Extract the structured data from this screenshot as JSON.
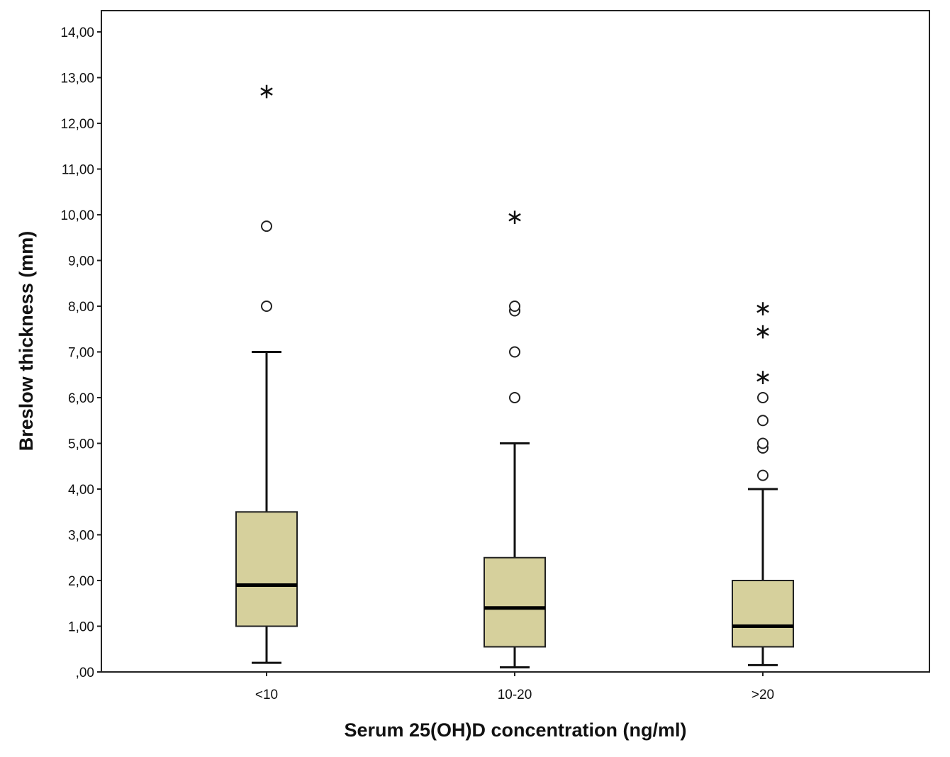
{
  "chart_data": {
    "type": "box",
    "xlabel": "Serum 25(OH)D concentration (ng/ml)",
    "ylabel": "Breslow thickness (mm)",
    "ylim": [
      0,
      14
    ],
    "ytick_values": [
      0,
      1,
      2,
      3,
      4,
      5,
      6,
      7,
      8,
      9,
      10,
      11,
      12,
      13,
      14
    ],
    "ytick_labels": [
      ",00",
      "1,00",
      "2,00",
      "3,00",
      "4,00",
      "5,00",
      "6,00",
      "7,00",
      "8,00",
      "9,00",
      "10,00",
      "11,00",
      "12,00",
      "13,00",
      "14,00"
    ],
    "categories": [
      "<10",
      "10-20",
      ">20"
    ],
    "box_color": "#d6d09c",
    "boxes": [
      {
        "category": "<10",
        "whisker_low": 0.2,
        "q1": 1.0,
        "median": 1.9,
        "q3": 3.5,
        "whisker_high": 7.0,
        "outliers": [
          8.0,
          9.75
        ],
        "extremes": [
          12.75
        ]
      },
      {
        "category": "10-20",
        "whisker_low": 0.1,
        "q1": 0.55,
        "median": 1.4,
        "q3": 2.5,
        "whisker_high": 5.0,
        "outliers": [
          6.0,
          7.0,
          7.9,
          8.0
        ],
        "extremes": [
          10.0
        ]
      },
      {
        "category": ">20",
        "whisker_low": 0.15,
        "q1": 0.55,
        "median": 1.0,
        "q3": 2.0,
        "whisker_high": 4.0,
        "outliers": [
          4.3,
          4.9,
          5.0,
          5.5,
          6.0
        ],
        "extremes": [
          6.5,
          7.5,
          8.0
        ]
      }
    ]
  }
}
